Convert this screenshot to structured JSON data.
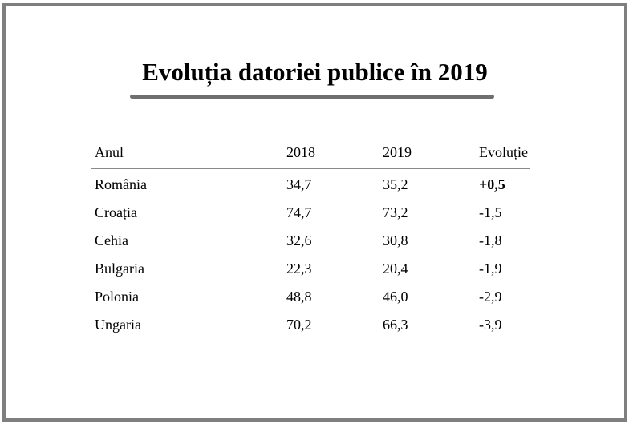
{
  "title": "Evoluția datoriei publice în 2019",
  "table": {
    "headers": [
      "Anul",
      "2018",
      "2019",
      "Evoluție"
    ],
    "rows": [
      {
        "country": "România",
        "y2018": "34,7",
        "y2019": "35,2",
        "evolution": "+0,5",
        "highlight": true
      },
      {
        "country": "Croația",
        "y2018": "74,7",
        "y2019": "73,2",
        "evolution": "-1,5",
        "highlight": false
      },
      {
        "country": "Cehia",
        "y2018": "32,6",
        "y2019": "30,8",
        "evolution": "-1,8",
        "highlight": false
      },
      {
        "country": "Bulgaria",
        "y2018": "22,3",
        "y2019": "20,4",
        "evolution": "-1,9",
        "highlight": false
      },
      {
        "country": "Polonia",
        "y2018": "48,8",
        "y2019": "46,0",
        "evolution": "-2,9",
        "highlight": false
      },
      {
        "country": "Ungaria",
        "y2018": "70,2",
        "y2019": "66,3",
        "evolution": "-3,9",
        "highlight": false
      }
    ]
  },
  "colors": {
    "frame": "#7f7f7f",
    "title_rule": "#6f6f6f",
    "header_rule": "#8a8a8a"
  }
}
